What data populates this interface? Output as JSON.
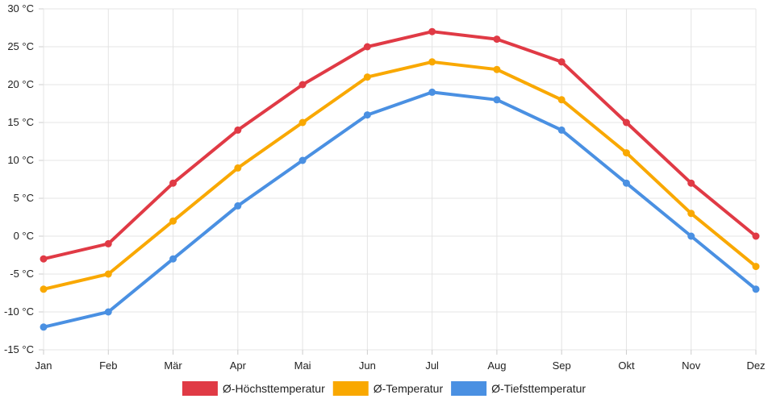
{
  "chart_data": {
    "type": "line",
    "categories": [
      "Jan",
      "Feb",
      "Mär",
      "Apr",
      "Mai",
      "Jun",
      "Jul",
      "Aug",
      "Sep",
      "Okt",
      "Nov",
      "Dez"
    ],
    "y_ticks": [
      "-15 °C",
      "-10 °C",
      "-5 °C",
      "0 °C",
      "5 °C",
      "10 °C",
      "15 °C",
      "20 °C",
      "25 °C",
      "30 °C"
    ],
    "ylim": [
      -15,
      30
    ],
    "grid": true,
    "legend_position": "bottom",
    "series": [
      {
        "name": "Ø-Höchsttemperatur",
        "color": "#e03a45",
        "values": [
          -3,
          -1,
          7,
          14,
          20,
          25,
          27,
          26,
          23,
          15,
          7,
          0
        ]
      },
      {
        "name": "Ø-Temperatur",
        "color": "#f9a800",
        "values": [
          -7,
          -5,
          2,
          9,
          15,
          21,
          23,
          22,
          18,
          11,
          3,
          -4
        ]
      },
      {
        "name": "Ø-Tiefsttemperatur",
        "color": "#4a90e2",
        "values": [
          -12,
          -10,
          -3,
          4,
          10,
          16,
          19,
          18,
          14,
          7,
          0,
          -7
        ]
      }
    ]
  }
}
